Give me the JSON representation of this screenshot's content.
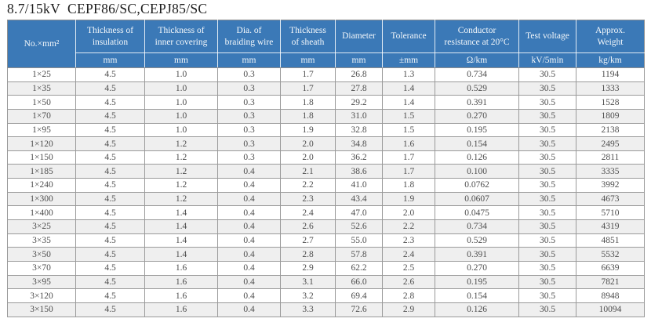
{
  "page": {
    "title": "8.7/15kV  CEPF86/SC,CEPJ85/SC"
  },
  "colors": {
    "header_bg": "#3b79b7",
    "header_text": "#f4f8fb",
    "row_alt_bg": "#efefef",
    "border_gray": "#9a9a9a",
    "data_text": "#4d4d4d"
  },
  "table": {
    "corner_header": "No.×mm²",
    "columns": [
      {
        "label": "Thickness of insulation",
        "unit": "mm"
      },
      {
        "label": "Thickness of inner covering",
        "unit": "mm"
      },
      {
        "label": "Dia. of braiding wire",
        "unit": "mm"
      },
      {
        "label": "Thickness of sheath",
        "unit": "mm"
      },
      {
        "label": "Diameter",
        "unit": "mm"
      },
      {
        "label": "Tolerance",
        "unit": "±mm"
      },
      {
        "label": "Conductor resistance at 20°C",
        "unit": "Ω/km"
      },
      {
        "label": "Test voltage",
        "unit": "kV/5min"
      },
      {
        "label": "Approx. Weight",
        "unit": "kg/km"
      }
    ],
    "rows": [
      [
        "1×25",
        "4.5",
        "1.0",
        "0.3",
        "1.7",
        "26.8",
        "1.3",
        "0.734",
        "30.5",
        "1194"
      ],
      [
        "1×35",
        "4.5",
        "1.0",
        "0.3",
        "1.7",
        "27.8",
        "1.4",
        "0.529",
        "30.5",
        "1333"
      ],
      [
        "1×50",
        "4.5",
        "1.0",
        "0.3",
        "1.8",
        "29.2",
        "1.4",
        "0.391",
        "30.5",
        "1528"
      ],
      [
        "1×70",
        "4.5",
        "1.0",
        "0.3",
        "1.8",
        "31.0",
        "1.5",
        "0.270",
        "30.5",
        "1809"
      ],
      [
        "1×95",
        "4.5",
        "1.0",
        "0.3",
        "1.9",
        "32.8",
        "1.5",
        "0.195",
        "30.5",
        "2138"
      ],
      [
        "1×120",
        "4.5",
        "1.2",
        "0.3",
        "2.0",
        "34.8",
        "1.6",
        "0.154",
        "30.5",
        "2495"
      ],
      [
        "1×150",
        "4.5",
        "1.2",
        "0.3",
        "2.0",
        "36.2",
        "1.7",
        "0.126",
        "30.5",
        "2811"
      ],
      [
        "1×185",
        "4.5",
        "1.2",
        "0.4",
        "2.1",
        "38.6",
        "1.7",
        "0.100",
        "30.5",
        "3335"
      ],
      [
        "1×240",
        "4.5",
        "1.2",
        "0.4",
        "2.2",
        "41.0",
        "1.8",
        "0.0762",
        "30.5",
        "3992"
      ],
      [
        "1×300",
        "4.5",
        "1.2",
        "0.4",
        "2.3",
        "43.4",
        "1.9",
        "0.0607",
        "30.5",
        "4673"
      ],
      [
        "1×400",
        "4.5",
        "1.4",
        "0.4",
        "2.4",
        "47.0",
        "2.0",
        "0.0475",
        "30.5",
        "5710"
      ],
      [
        "3×25",
        "4.5",
        "1.4",
        "0.4",
        "2.6",
        "52.6",
        "2.2",
        "0.734",
        "30.5",
        "4319"
      ],
      [
        "3×35",
        "4.5",
        "1.4",
        "0.4",
        "2.7",
        "55.0",
        "2.3",
        "0.529",
        "30.5",
        "4851"
      ],
      [
        "3×50",
        "4.5",
        "1.4",
        "0.4",
        "2.8",
        "57.8",
        "2.4",
        "0.391",
        "30.5",
        "5532"
      ],
      [
        "3×70",
        "4.5",
        "1.6",
        "0.4",
        "2.9",
        "62.2",
        "2.5",
        "0.270",
        "30.5",
        "6639"
      ],
      [
        "3×95",
        "4.5",
        "1.6",
        "0.4",
        "3.1",
        "66.0",
        "2.6",
        "0.195",
        "30.5",
        "7821"
      ],
      [
        "3×120",
        "4.5",
        "1.6",
        "0.4",
        "3.2",
        "69.4",
        "2.8",
        "0.154",
        "30.5",
        "8948"
      ],
      [
        "3×150",
        "4.5",
        "1.6",
        "0.4",
        "3.3",
        "72.6",
        "2.9",
        "0.126",
        "30.5",
        "10094"
      ]
    ]
  }
}
